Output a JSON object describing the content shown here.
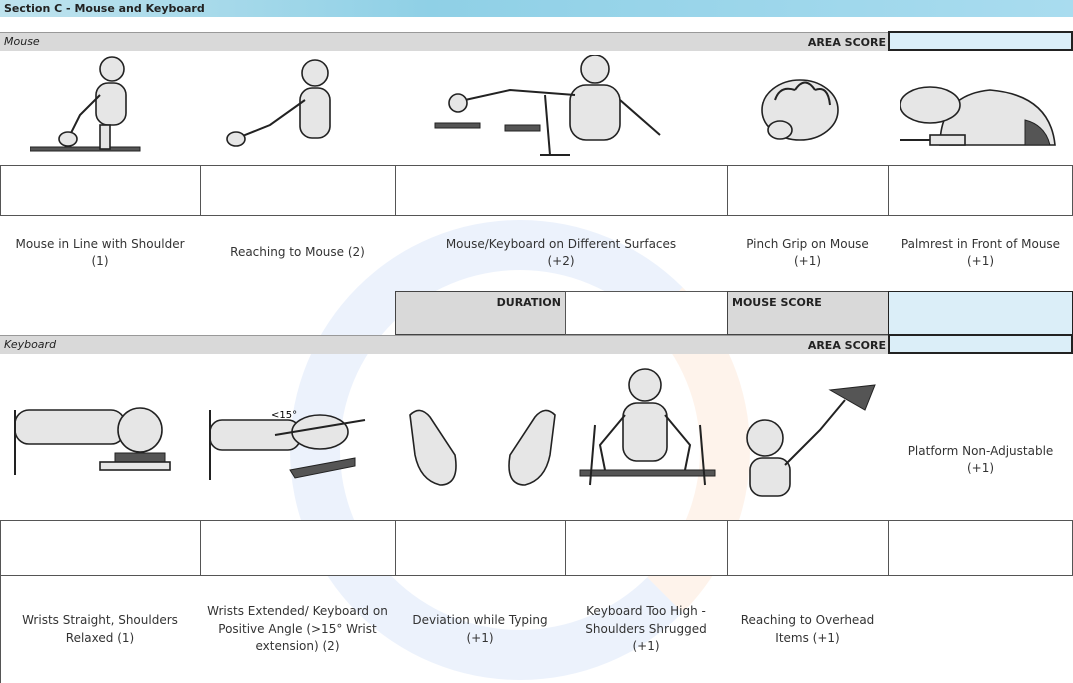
{
  "section_title": "Section C - Mouse and Keyboard",
  "mouse": {
    "label": "Mouse",
    "area_score_label": "AREA SCORE",
    "items": [
      "Mouse in Line with Shoulder (1)",
      "Reaching to Mouse (2)",
      "Mouse/Keyboard on Different Surfaces (+2)",
      "Pinch Grip on Mouse (+1)",
      "Palmrest in Front of Mouse (+1)"
    ],
    "duration_label": "DURATION",
    "score_label": "MOUSE SCORE"
  },
  "keyboard": {
    "label": "Keyboard",
    "area_score_label": "AREA SCORE",
    "angle_note": "<15°",
    "platform_label": "Platform Non-Adjustable (+1)",
    "items": [
      "Wrists Straight, Shoulders Relaxed (1)",
      "Wrists Extended/ Keyboard on Positive Angle (>15° Wrist extension) (2)",
      "Deviation while Typing (+1)",
      "Keyboard Too High - Shoulders Shrugged (+1)",
      "Reaching to Overhead Items (+1)"
    ]
  }
}
